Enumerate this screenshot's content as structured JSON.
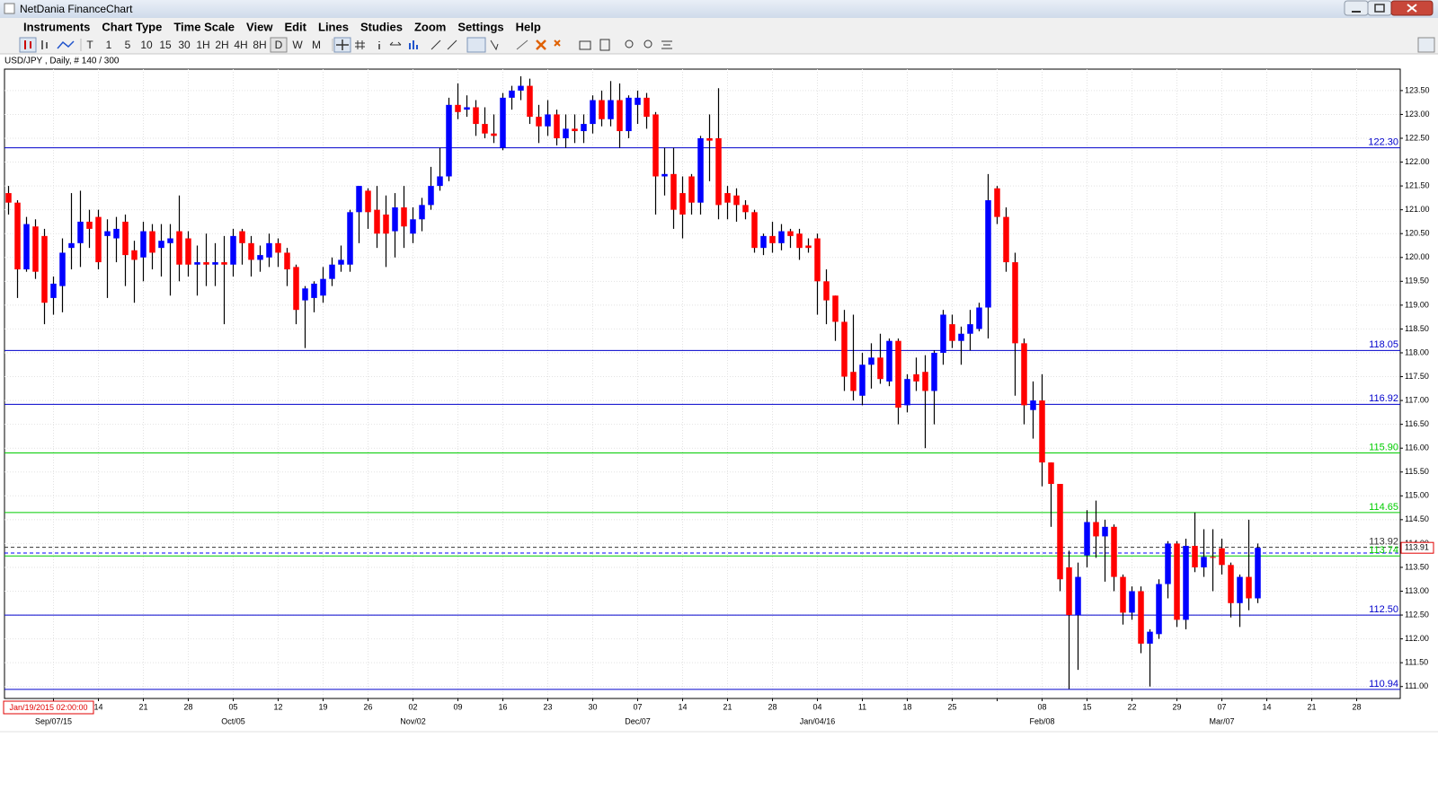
{
  "window_title": "NetDania FinanceChart",
  "menu": [
    "Instruments",
    "Chart Type",
    "Time Scale",
    "View",
    "Edit",
    "Lines",
    "Studies",
    "Zoom",
    "Settings",
    "Help"
  ],
  "toolbar": [
    "T",
    "1",
    "5",
    "10",
    "15",
    "30",
    "1H",
    "2H",
    "4H",
    "8H",
    "D",
    "W",
    "M"
  ],
  "cursor_label": "Jan/19/2015 02:00:00",
  "chart_data": {
    "type": "candlestick",
    "title": "USD/JPY , Daily, # 140 / 300",
    "up_color": "#0000ff",
    "down_color": "#ff0000",
    "ylim": [
      110.75,
      123.95
    ],
    "yticks": [
      {
        "value": 111,
        "label": "111.00"
      },
      {
        "value": 111.5,
        "label": "111.50"
      },
      {
        "value": 112,
        "label": "112.00"
      },
      {
        "value": 112.5,
        "label": "112.50"
      },
      {
        "value": 113,
        "label": "113.00"
      },
      {
        "value": 113.5,
        "label": "113.50"
      },
      {
        "value": 114,
        "label": "114.00"
      },
      {
        "value": 114.5,
        "label": "114.50"
      },
      {
        "value": 115,
        "label": "115.00"
      },
      {
        "value": 115.5,
        "label": "115.50"
      },
      {
        "value": 116,
        "label": "116.00"
      },
      {
        "value": 116.5,
        "label": "116.50"
      },
      {
        "value": 117,
        "label": "117.00"
      },
      {
        "value": 117.5,
        "label": "117.50"
      },
      {
        "value": 118,
        "label": "118.00"
      },
      {
        "value": 118.5,
        "label": "118.50"
      },
      {
        "value": 119,
        "label": "119.00"
      },
      {
        "value": 119.5,
        "label": "119.50"
      },
      {
        "value": 120,
        "label": "120.00"
      },
      {
        "value": 120.5,
        "label": "120.50"
      },
      {
        "value": 121,
        "label": "121.00"
      },
      {
        "value": 121.5,
        "label": "121.50"
      },
      {
        "value": 122,
        "label": "122.00"
      },
      {
        "value": 122.5,
        "label": "122.50"
      },
      {
        "value": 123,
        "label": "123.00"
      },
      {
        "value": 123.5,
        "label": "123.50"
      }
    ],
    "grid": true,
    "week_labels": [
      null,
      "14",
      "21",
      "28",
      "05",
      "12",
      "19",
      "26",
      "02",
      "09",
      "16",
      "23",
      "30",
      "07",
      "14",
      "21",
      "28",
      "04",
      "11",
      "18",
      "25",
      null,
      "08",
      "15",
      "22",
      "29",
      "07",
      "14",
      "21",
      "28"
    ],
    "month_labels": [
      "Sep/07/15",
      null,
      null,
      null,
      "Oct/05",
      null,
      null,
      null,
      "Nov/02",
      null,
      null,
      null,
      null,
      "Dec/07",
      null,
      null,
      null,
      "Jan/04/16",
      null,
      null,
      null,
      null,
      "Feb/08",
      null,
      null,
      null,
      "Mar/07",
      null,
      null,
      null
    ],
    "open": [
      121.35,
      121.15,
      119.75,
      120.65,
      120.45,
      119.15,
      119.4,
      120.2,
      120.3,
      120.75,
      120.85,
      120.45,
      120.4,
      120.75,
      120.15,
      120.0,
      120.55,
      120.2,
      120.3,
      120.55,
      120.4,
      119.85,
      119.9,
      119.85,
      119.9,
      119.85,
      120.55,
      120.3,
      119.95,
      120.0,
      120.3,
      120.1,
      119.8,
      119.1,
      119.15,
      119.2,
      119.55,
      119.85,
      119.85,
      120.95,
      121.4,
      121.0,
      120.9,
      120.55,
      121.05,
      120.5,
      120.8,
      121.1,
      121.5,
      121.7,
      123.2,
      123.1,
      123.15,
      122.8,
      122.6,
      122.3,
      123.35,
      123.5,
      123.6,
      122.95,
      122.75,
      123.0,
      122.5,
      122.7,
      122.65,
      122.8,
      123.3,
      122.9,
      123.3,
      122.65,
      123.2,
      123.35,
      123.0,
      121.7,
      121.75,
      121.35,
      121.7,
      121.15,
      122.5,
      122.5,
      121.35,
      121.3,
      121.1,
      120.95,
      120.2,
      120.45,
      120.3,
      120.55,
      120.5,
      120.25,
      120.4,
      119.5,
      119.2,
      118.65,
      117.6,
      117.1,
      117.75,
      117.9,
      117.4,
      118.25,
      116.9,
      117.55,
      117.6,
      117.2,
      118.0,
      118.6,
      118.25,
      118.4,
      118.5,
      118.95,
      121.45,
      120.85,
      119.9,
      118.2,
      116.8,
      117.0,
      115.7,
      115.25,
      113.5,
      112.5,
      113.75,
      114.45,
      114.15,
      114.35,
      113.3,
      112.55,
      113.0,
      111.9,
      112.1,
      113.15,
      114.0,
      112.4,
      113.95,
      113.5,
      113.72,
      113.9,
      113.55,
      112.75,
      113.3,
      112.85
    ],
    "high": [
      121.5,
      121.2,
      120.85,
      120.8,
      120.6,
      119.6,
      120.4,
      121.35,
      121.4,
      121.0,
      121.0,
      120.8,
      120.85,
      120.9,
      120.35,
      120.75,
      120.7,
      120.7,
      120.7,
      121.3,
      120.55,
      120.25,
      120.5,
      120.3,
      120.45,
      120.6,
      120.6,
      120.45,
      120.25,
      120.5,
      120.4,
      120.2,
      119.85,
      119.4,
      119.5,
      119.8,
      120.0,
      120.25,
      121.0,
      121.5,
      121.45,
      121.5,
      121.3,
      121.35,
      121.5,
      121.05,
      121.25,
      121.9,
      122.3,
      123.35,
      123.65,
      123.4,
      123.3,
      123.15,
      123.0,
      123.45,
      123.6,
      123.8,
      123.75,
      123.2,
      123.3,
      123.1,
      123.0,
      123.0,
      123.0,
      123.4,
      123.5,
      123.7,
      123.65,
      123.4,
      123.5,
      123.45,
      123.05,
      122.3,
      122.3,
      121.7,
      121.75,
      122.55,
      123.0,
      123.55,
      121.5,
      121.45,
      121.2,
      121.0,
      120.5,
      120.75,
      120.7,
      120.6,
      120.6,
      120.4,
      120.5,
      119.75,
      119.2,
      118.9,
      118.8,
      118.0,
      118.2,
      118.4,
      118.3,
      118.3,
      117.55,
      117.9,
      117.95,
      118.05,
      118.9,
      118.8,
      118.55,
      118.9,
      119.05,
      121.75,
      121.5,
      121.05,
      120.1,
      118.3,
      117.4,
      117.55,
      115.7,
      115.25,
      113.85,
      113.6,
      114.7,
      114.9,
      114.5,
      114.4,
      113.35,
      113.1,
      113.1,
      112.2,
      113.25,
      114.05,
      114.05,
      114.1,
      114.65,
      114.3,
      114.3,
      114.1,
      113.6,
      113.35,
      114.5,
      114.0
    ],
    "low": [
      120.9,
      119.15,
      119.7,
      119.55,
      118.6,
      118.8,
      118.85,
      119.75,
      119.8,
      120.2,
      119.75,
      119.15,
      119.9,
      119.4,
      119.05,
      119.5,
      119.75,
      119.6,
      119.2,
      119.5,
      119.6,
      119.2,
      119.4,
      119.4,
      118.6,
      119.6,
      119.85,
      119.6,
      119.7,
      119.8,
      119.8,
      119.4,
      118.6,
      118.1,
      118.85,
      119.05,
      119.4,
      119.7,
      119.7,
      120.3,
      120.6,
      120.2,
      119.8,
      120.0,
      120.2,
      120.3,
      120.55,
      121.0,
      121.4,
      121.6,
      122.9,
      122.95,
      122.55,
      122.5,
      122.4,
      122.25,
      123.1,
      123.3,
      122.8,
      122.4,
      122.55,
      122.35,
      122.3,
      122.4,
      122.4,
      122.6,
      122.75,
      122.75,
      122.3,
      122.5,
      122.8,
      122.7,
      120.9,
      121.3,
      120.6,
      120.4,
      120.9,
      120.9,
      121.6,
      120.8,
      120.8,
      120.75,
      120.8,
      120.1,
      120.05,
      120.1,
      120.15,
      120.2,
      119.95,
      120.1,
      118.8,
      118.6,
      118.25,
      117.2,
      117.0,
      116.9,
      117.25,
      117.35,
      117.3,
      116.5,
      116.75,
      117.2,
      116.0,
      116.5,
      117.75,
      118.1,
      117.75,
      118.05,
      118.45,
      118.3,
      120.7,
      119.7,
      117.1,
      116.5,
      116.2,
      115.2,
      114.35,
      113.0,
      110.95,
      111.35,
      113.5,
      113.7,
      113.2,
      113.0,
      112.3,
      112.4,
      111.7,
      111.0,
      112.0,
      112.85,
      112.25,
      112.2,
      113.4,
      113.3,
      113.0,
      113.35,
      112.45,
      112.25,
      112.6,
      112.75
    ],
    "close": [
      121.15,
      119.75,
      120.7,
      119.7,
      119.05,
      119.45,
      120.1,
      120.3,
      120.75,
      120.6,
      119.9,
      120.55,
      120.6,
      120.05,
      119.95,
      120.55,
      120.1,
      120.35,
      120.4,
      119.85,
      119.85,
      119.9,
      119.85,
      119.9,
      119.85,
      120.45,
      120.3,
      119.95,
      120.05,
      120.3,
      120.1,
      119.75,
      118.9,
      119.35,
      119.45,
      119.55,
      119.85,
      119.95,
      120.95,
      121.5,
      120.95,
      120.5,
      120.5,
      121.05,
      120.65,
      120.8,
      121.1,
      121.5,
      121.7,
      123.2,
      123.05,
      123.15,
      122.8,
      122.6,
      122.55,
      123.35,
      123.5,
      123.6,
      122.95,
      122.75,
      123.0,
      122.5,
      122.7,
      122.65,
      122.8,
      123.3,
      122.9,
      123.3,
      122.65,
      123.35,
      123.35,
      122.95,
      121.7,
      121.75,
      121.0,
      120.9,
      121.15,
      122.5,
      122.45,
      121.1,
      121.15,
      121.1,
      120.95,
      120.2,
      120.45,
      120.3,
      120.55,
      120.45,
      120.2,
      120.2,
      119.5,
      119.1,
      118.65,
      117.5,
      117.2,
      117.75,
      117.9,
      117.45,
      118.25,
      116.85,
      117.45,
      117.4,
      117.2,
      118.0,
      118.8,
      118.25,
      118.4,
      118.6,
      118.95,
      121.2,
      120.85,
      119.9,
      118.2,
      116.9,
      117.0,
      115.7,
      115.25,
      113.25,
      112.5,
      113.3,
      114.45,
      114.15,
      114.35,
      113.3,
      112.55,
      113.0,
      111.9,
      112.15,
      113.15,
      114.0,
      112.4,
      113.95,
      113.5,
      113.72,
      113.7,
      113.55,
      112.75,
      113.3,
      112.85,
      113.91
    ],
    "levels": [
      {
        "value": 122.3,
        "label": "122.30",
        "color": "#0000cc"
      },
      {
        "value": 118.05,
        "label": "118.05",
        "color": "#0000cc"
      },
      {
        "value": 116.92,
        "label": "116.92",
        "color": "#0000cc"
      },
      {
        "value": 115.9,
        "label": "115.90",
        "color": "#00cc00"
      },
      {
        "value": 114.65,
        "label": "114.65",
        "color": "#00cc00"
      },
      {
        "value": 113.92,
        "label": "113.92",
        "color": "#333333",
        "style": "dashed"
      },
      {
        "value": 113.8,
        "color": "#0000ff",
        "style": "dashed"
      },
      {
        "value": 113.74,
        "label": "113.74",
        "color": "#00cc00"
      },
      {
        "value": 112.5,
        "label": "112.50",
        "color": "#0000cc"
      },
      {
        "value": 110.94,
        "label": "110.94",
        "color": "#0000cc"
      }
    ],
    "last_price": 113.91
  }
}
